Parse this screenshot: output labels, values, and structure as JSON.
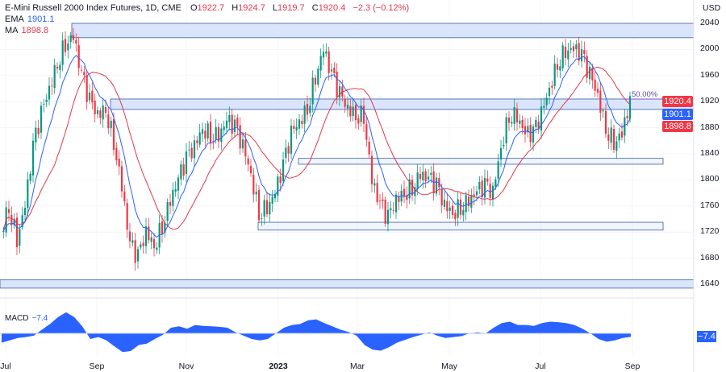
{
  "header": {
    "title": "E-Mini Russell 2000 Index Futures, 1D, CME",
    "open_label": "O",
    "open": "1922.7",
    "high_label": "H",
    "high": "1924.7",
    "low_label": "L",
    "low": "1919.7",
    "close_label": "C",
    "close": "1920.4",
    "change": "−2.3 (−0.12%)"
  },
  "indicators": {
    "ema_label": "EMA",
    "ema_value": "1901.1",
    "ma_label": "MA",
    "ma_value": "1898.8",
    "macd_label": "MACD",
    "macd_value": "−7.4"
  },
  "currency": "USD",
  "price_tags": {
    "last": "1920.4",
    "ema": "1901.1",
    "ma": "1898.8",
    "macd": "−7.4"
  },
  "colors": {
    "up": "#089981",
    "down": "#f23645",
    "ema": "#2962ff",
    "ma": "#e0394a",
    "zone_fill": "#d6e2fb",
    "zone_stroke": "#3a5ba8",
    "macd": "#2962ff"
  },
  "chart_data": {
    "type": "candlestick",
    "title": "E-Mini Russell 2000 Index Futures, 1D, CME",
    "ylabel": "USD",
    "ylim": [
      1625,
      2052
    ],
    "yticks": [
      2040,
      2000,
      1960,
      1920,
      1880,
      1840,
      1800,
      1760,
      1720,
      1680,
      1640
    ],
    "xticks": [
      {
        "label": "Jul",
        "index": 0.5,
        "bold": false
      },
      {
        "label": "Sep",
        "index": 11.8,
        "bold": false
      },
      {
        "label": "Nov",
        "index": 22.9,
        "bold": false
      },
      {
        "label": "2023",
        "index": 34.3,
        "bold": true
      },
      {
        "label": "Mar",
        "index": 44.1,
        "bold": false
      },
      {
        "label": "May",
        "index": 55.5,
        "bold": false
      },
      {
        "label": "Jul",
        "index": 66.8,
        "bold": false
      },
      {
        "label": "Sep",
        "index": 78.2,
        "bold": false
      }
    ],
    "closes": [
      1720,
      1760,
      1710,
      1760,
      1850,
      1900,
      1940,
      1980,
      2010,
      2020,
      1960,
      1920,
      1900,
      1910,
      1860,
      1790,
      1700,
      1680,
      1720,
      1700,
      1730,
      1770,
      1800,
      1830,
      1850,
      1880,
      1870,
      1870,
      1890,
      1880,
      1850,
      1810,
      1750,
      1760,
      1780,
      1820,
      1870,
      1890,
      1910,
      1960,
      2000,
      1960,
      1930,
      1910,
      1900,
      1900,
      1800,
      1760,
      1740,
      1770,
      1780,
      1790,
      1810,
      1800,
      1790,
      1760,
      1750,
      1760,
      1770,
      1780,
      1790,
      1780,
      1850,
      1900,
      1900,
      1870,
      1870,
      1900,
      1940,
      1980,
      2000,
      2000,
      1990,
      1960,
      1930,
      1880,
      1860,
      1870,
      1920
    ],
    "zones": [
      {
        "name": "resistance-zone-top",
        "top": 2040,
        "bottom": 2018,
        "start": 8.7,
        "end": 86
      },
      {
        "name": "zone-1920",
        "top": 1924,
        "bottom": 1908,
        "start": 13.5,
        "end": 86
      },
      {
        "name": "zone-1830",
        "top": 1833,
        "bottom": 1824,
        "start": 36.8,
        "end": 82
      },
      {
        "name": "zone-1730",
        "top": 1735,
        "bottom": 1723,
        "start": 31.8,
        "end": 82
      },
      {
        "name": "support-zone-bottom",
        "top": 1647,
        "bottom": 1634,
        "start": -1,
        "end": 86
      }
    ],
    "fib_line": {
      "label": "50.00%",
      "price": 1924,
      "start": 77,
      "end": 82
    },
    "macd": [
      -20,
      -15,
      -10,
      -8,
      -5,
      8,
      20,
      35,
      45,
      35,
      15,
      -12,
      -8,
      -15,
      -28,
      -40,
      -38,
      -25,
      -22,
      -12,
      -3,
      12,
      15,
      10,
      18,
      16,
      15,
      14,
      12,
      2,
      -5,
      -12,
      -15,
      -12,
      0,
      12,
      18,
      20,
      28,
      30,
      22,
      15,
      8,
      3,
      -5,
      -25,
      -35,
      -37,
      -30,
      -20,
      -14,
      -8,
      -3,
      2,
      -5,
      -10,
      -8,
      -6,
      0,
      2,
      0,
      12,
      22,
      25,
      18,
      18,
      16,
      22,
      25,
      24,
      22,
      18,
      10,
      0,
      -12,
      -18,
      -15,
      -10,
      -7.4
    ]
  }
}
